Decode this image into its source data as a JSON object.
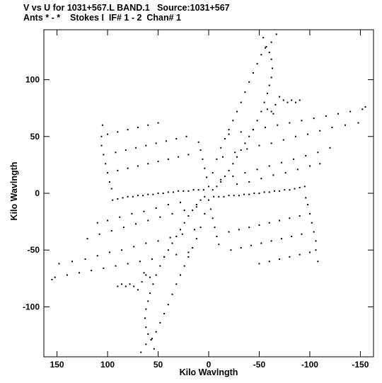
{
  "header": {
    "line1": "V vs U for 1031+567.L BAND.1   Source:1031+567",
    "line2": "Ants * - *    Stokes I  IF# 1 - 2  Chan# 1"
  },
  "chart_data": {
    "type": "scatter",
    "title": "V vs U for 1031+567.L BAND.1   Source:1031+567",
    "subtitle": "Ants * - *    Stokes I  IF# 1 - 2  Chan# 1",
    "xlabel": "Kilo Wavlngth",
    "ylabel": "Kilo Wavlngth",
    "xlim": [
      163,
      -163
    ],
    "ylim": [
      -144,
      144
    ],
    "x_reversed": true,
    "grid": false,
    "x_ticks": [
      150,
      100,
      50,
      0,
      -50,
      -100,
      -150
    ],
    "x_tick_labels": [
      "150",
      "100",
      "50",
      "0",
      "-50",
      "-100",
      "-150"
    ],
    "y_ticks": [
      100,
      50,
      0,
      -50,
      -100
    ],
    "y_tick_labels": [
      "100",
      "50",
      "0",
      "-50",
      "-100"
    ],
    "series": [
      {
        "marker": "dot",
        "color": "#000000",
        "points": [
          [
            -54,
            137
          ],
          [
            -56,
            128
          ],
          [
            -60,
            124
          ],
          [
            -62,
            118
          ],
          [
            -63,
            110
          ],
          [
            -62,
            102
          ],
          [
            -60,
            95
          ],
          [
            -58,
            88
          ],
          [
            -55,
            80
          ],
          [
            -52,
            72
          ],
          [
            -48,
            64
          ],
          [
            -44,
            56
          ],
          [
            -40,
            50
          ],
          [
            -36,
            44
          ],
          [
            -32,
            38
          ],
          [
            -28,
            32
          ],
          [
            -24,
            26
          ],
          [
            -20,
            20
          ],
          [
            -16,
            15
          ],
          [
            -12,
            10
          ],
          [
            -8,
            6
          ],
          [
            -4,
            3
          ],
          [
            -67,
            140
          ],
          [
            -62,
            133
          ],
          [
            -57,
            129
          ],
          [
            -52,
            122
          ],
          [
            -48,
            114
          ],
          [
            -44,
            106
          ],
          [
            -40,
            98
          ],
          [
            -36,
            89
          ],
          [
            -32,
            80
          ],
          [
            -28,
            72
          ],
          [
            -24,
            64
          ],
          [
            -20,
            56
          ],
          [
            -16,
            48
          ],
          [
            -12,
            40
          ],
          [
            -8,
            30
          ],
          [
            -4,
            18
          ],
          [
            -70,
            85
          ],
          [
            -74,
            82
          ],
          [
            -78,
            80
          ],
          [
            -82,
            82
          ],
          [
            -86,
            80
          ],
          [
            -90,
            82
          ],
          [
            -66,
            78
          ],
          [
            -64,
            70
          ],
          [
            -62,
            72
          ],
          [
            -58,
            74
          ],
          [
            -155,
            76
          ],
          [
            -152,
            74
          ],
          [
            -140,
            72
          ],
          [
            -128,
            70
          ],
          [
            -116,
            68
          ],
          [
            -104,
            66
          ],
          [
            -92,
            64
          ],
          [
            -80,
            62
          ],
          [
            -68,
            60
          ],
          [
            -56,
            58
          ],
          [
            -44,
            56
          ],
          [
            -32,
            54
          ],
          [
            -20,
            52
          ],
          [
            -148,
            62
          ],
          [
            -135,
            60
          ],
          [
            -122,
            58
          ],
          [
            -110,
            55
          ],
          [
            -98,
            52
          ],
          [
            -86,
            50
          ],
          [
            -74,
            47
          ],
          [
            -62,
            44
          ],
          [
            -50,
            42
          ],
          [
            -38,
            39
          ],
          [
            -26,
            36
          ],
          [
            -14,
            32
          ],
          [
            -120,
            40
          ],
          [
            -108,
            36
          ],
          [
            -96,
            33
          ],
          [
            -84,
            30
          ],
          [
            -72,
            27
          ],
          [
            -60,
            24
          ],
          [
            -48,
            21
          ],
          [
            -36,
            18
          ],
          [
            -24,
            15
          ],
          [
            -12,
            12
          ],
          [
            -110,
            26
          ],
          [
            -100,
            24
          ],
          [
            -88,
            21
          ],
          [
            -76,
            18
          ],
          [
            -64,
            16
          ],
          [
            -52,
            13
          ],
          [
            -40,
            10
          ],
          [
            -28,
            8
          ],
          [
            -95,
            6
          ],
          [
            -90,
            5
          ],
          [
            -85,
            4
          ],
          [
            -80,
            3
          ],
          [
            -75,
            3
          ],
          [
            -70,
            2
          ],
          [
            -65,
            2
          ],
          [
            -60,
            1
          ],
          [
            -55,
            1
          ],
          [
            -50,
            0
          ],
          [
            -45,
            0
          ],
          [
            -40,
            -1
          ],
          [
            -35,
            -1
          ],
          [
            -30,
            -2
          ],
          [
            -25,
            -2
          ],
          [
            -20,
            -2
          ],
          [
            -15,
            -3
          ],
          [
            -10,
            -3
          ],
          [
            -5,
            -3
          ],
          [
            -96,
            -4
          ],
          [
            -98,
            -10
          ],
          [
            -100,
            -18
          ],
          [
            -102,
            -26
          ],
          [
            -104,
            -34
          ],
          [
            -106,
            -42
          ],
          [
            -106,
            -50
          ],
          [
            -108,
            -60
          ],
          [
            -90,
            -20
          ],
          [
            -80,
            -22
          ],
          [
            -70,
            -24
          ],
          [
            -60,
            -26
          ],
          [
            -50,
            -28
          ],
          [
            -40,
            -30
          ],
          [
            -30,
            -32
          ],
          [
            -20,
            -34
          ],
          [
            -92,
            -36
          ],
          [
            -82,
            -38
          ],
          [
            -72,
            -40
          ],
          [
            -62,
            -42
          ],
          [
            -52,
            -44
          ],
          [
            -42,
            -46
          ],
          [
            -32,
            -48
          ],
          [
            -22,
            -50
          ],
          [
            -100,
            -52
          ],
          [
            -90,
            -54
          ],
          [
            -80,
            -56
          ],
          [
            -70,
            -58
          ],
          [
            -60,
            -60
          ],
          [
            -50,
            -62
          ],
          [
            54,
            -137
          ],
          [
            56,
            -128
          ],
          [
            60,
            -124
          ],
          [
            62,
            -118
          ],
          [
            63,
            -110
          ],
          [
            62,
            -102
          ],
          [
            60,
            -95
          ],
          [
            58,
            -88
          ],
          [
            55,
            -80
          ],
          [
            52,
            -72
          ],
          [
            48,
            -64
          ],
          [
            44,
            -56
          ],
          [
            40,
            -50
          ],
          [
            36,
            -44
          ],
          [
            32,
            -38
          ],
          [
            28,
            -32
          ],
          [
            24,
            -26
          ],
          [
            20,
            -20
          ],
          [
            16,
            -15
          ],
          [
            12,
            -10
          ],
          [
            8,
            -6
          ],
          [
            4,
            -3
          ],
          [
            67,
            -140
          ],
          [
            62,
            -133
          ],
          [
            57,
            -129
          ],
          [
            52,
            -122
          ],
          [
            48,
            -114
          ],
          [
            44,
            -106
          ],
          [
            40,
            -98
          ],
          [
            36,
            -89
          ],
          [
            32,
            -80
          ],
          [
            28,
            -72
          ],
          [
            24,
            -64
          ],
          [
            20,
            -56
          ],
          [
            16,
            -48
          ],
          [
            12,
            -40
          ],
          [
            8,
            -30
          ],
          [
            4,
            -18
          ],
          [
            70,
            -85
          ],
          [
            74,
            -82
          ],
          [
            78,
            -80
          ],
          [
            82,
            -82
          ],
          [
            86,
            -80
          ],
          [
            90,
            -82
          ],
          [
            66,
            -78
          ],
          [
            64,
            -70
          ],
          [
            62,
            -72
          ],
          [
            58,
            -74
          ],
          [
            155,
            -76
          ],
          [
            152,
            -74
          ],
          [
            140,
            -72
          ],
          [
            128,
            -70
          ],
          [
            116,
            -68
          ],
          [
            104,
            -66
          ],
          [
            92,
            -64
          ],
          [
            80,
            -62
          ],
          [
            68,
            -60
          ],
          [
            56,
            -58
          ],
          [
            44,
            -56
          ],
          [
            32,
            -54
          ],
          [
            20,
            -52
          ],
          [
            148,
            -62
          ],
          [
            135,
            -60
          ],
          [
            122,
            -58
          ],
          [
            110,
            -55
          ],
          [
            98,
            -52
          ],
          [
            86,
            -50
          ],
          [
            74,
            -47
          ],
          [
            62,
            -44
          ],
          [
            50,
            -42
          ],
          [
            38,
            -39
          ],
          [
            26,
            -36
          ],
          [
            14,
            -32
          ],
          [
            120,
            -40
          ],
          [
            108,
            -36
          ],
          [
            96,
            -33
          ],
          [
            84,
            -30
          ],
          [
            72,
            -27
          ],
          [
            60,
            -24
          ],
          [
            48,
            -21
          ],
          [
            36,
            -18
          ],
          [
            24,
            -15
          ],
          [
            12,
            -12
          ],
          [
            110,
            -26
          ],
          [
            100,
            -24
          ],
          [
            88,
            -21
          ],
          [
            76,
            -18
          ],
          [
            64,
            -16
          ],
          [
            52,
            -13
          ],
          [
            40,
            -10
          ],
          [
            28,
            -8
          ],
          [
            95,
            -6
          ],
          [
            90,
            -5
          ],
          [
            85,
            -4
          ],
          [
            80,
            -3
          ],
          [
            75,
            -3
          ],
          [
            70,
            -2
          ],
          [
            65,
            -2
          ],
          [
            60,
            -1
          ],
          [
            55,
            -1
          ],
          [
            50,
            0
          ],
          [
            45,
            0
          ],
          [
            40,
            1
          ],
          [
            35,
            1
          ],
          [
            30,
            2
          ],
          [
            25,
            2
          ],
          [
            20,
            2
          ],
          [
            15,
            3
          ],
          [
            10,
            3
          ],
          [
            5,
            3
          ],
          [
            96,
            4
          ],
          [
            98,
            10
          ],
          [
            100,
            18
          ],
          [
            102,
            26
          ],
          [
            104,
            34
          ],
          [
            106,
            42
          ],
          [
            106,
            50
          ],
          [
            105,
            60
          ],
          [
            90,
            20
          ],
          [
            80,
            22
          ],
          [
            70,
            24
          ],
          [
            60,
            26
          ],
          [
            50,
            28
          ],
          [
            40,
            30
          ],
          [
            30,
            32
          ],
          [
            20,
            34
          ],
          [
            92,
            36
          ],
          [
            82,
            38
          ],
          [
            72,
            40
          ],
          [
            62,
            42
          ],
          [
            52,
            44
          ],
          [
            42,
            46
          ],
          [
            32,
            48
          ],
          [
            22,
            50
          ],
          [
            100,
            52
          ],
          [
            90,
            54
          ],
          [
            80,
            56
          ],
          [
            70,
            58
          ],
          [
            60,
            60
          ],
          [
            50,
            62
          ],
          [
            10,
            45
          ],
          [
            8,
            38
          ],
          [
            6,
            30
          ],
          [
            4,
            22
          ],
          [
            2,
            14
          ],
          [
            0,
            6
          ],
          [
            -10,
            -45
          ],
          [
            -8,
            -38
          ],
          [
            -6,
            -30
          ],
          [
            -4,
            -22
          ],
          [
            -2,
            -14
          ],
          [
            0,
            -6
          ]
        ]
      }
    ]
  }
}
